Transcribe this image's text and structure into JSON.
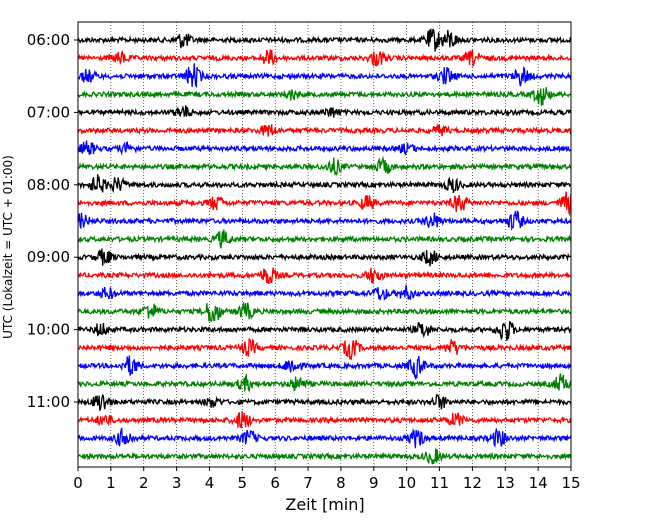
{
  "chart_data": {
    "type": "line",
    "title": "",
    "xlabel": "Zeit  [min]",
    "ylabel": "UTC (Lokalzeit = UTC + 01:00)",
    "xlim": [
      0,
      15
    ],
    "x_ticks": [
      "0",
      "1",
      "2",
      "3",
      "4",
      "5",
      "6",
      "7",
      "8",
      "9",
      "10",
      "11",
      "12",
      "13",
      "14",
      "15"
    ],
    "y_ticks": [
      "06:00",
      "07:00",
      "08:00",
      "09:00",
      "10:00",
      "11:00"
    ],
    "y_tick_trace_index": [
      0,
      4,
      8,
      12,
      16,
      20
    ],
    "grid": "vertical dotted lines at each minute",
    "legend": "none",
    "trace_interval_minutes": 15,
    "trace_colors": [
      "#000000",
      "#ff0000",
      "#0000ff",
      "#008000"
    ],
    "series": [
      {
        "start": "06:00",
        "color": "#000000",
        "events": [
          {
            "t": 3.2,
            "a": 1.0
          },
          {
            "t": 10.8,
            "a": 1.5
          },
          {
            "t": 11.3,
            "a": 1.2
          }
        ]
      },
      {
        "start": "06:15",
        "color": "#ff0000",
        "events": [
          {
            "t": 1.3,
            "a": 0.7
          },
          {
            "t": 5.8,
            "a": 1.0
          },
          {
            "t": 9.1,
            "a": 1.0
          },
          {
            "t": 12.0,
            "a": 0.9
          }
        ]
      },
      {
        "start": "06:30",
        "color": "#0000ff",
        "events": [
          {
            "t": 0.3,
            "a": 0.8
          },
          {
            "t": 3.5,
            "a": 1.6
          },
          {
            "t": 11.2,
            "a": 1.1
          },
          {
            "t": 13.5,
            "a": 1.2
          }
        ]
      },
      {
        "start": "06:45",
        "color": "#008000",
        "events": [
          {
            "t": 6.5,
            "a": 0.6
          },
          {
            "t": 14.1,
            "a": 1.4
          }
        ]
      },
      {
        "start": "07:00",
        "color": "#000000",
        "events": [
          {
            "t": 3.2,
            "a": 0.8
          },
          {
            "t": 7.7,
            "a": 0.6
          }
        ]
      },
      {
        "start": "07:15",
        "color": "#ff0000",
        "events": [
          {
            "t": 5.8,
            "a": 0.8
          },
          {
            "t": 11.0,
            "a": 0.6
          }
        ]
      },
      {
        "start": "07:30",
        "color": "#0000ff",
        "events": [
          {
            "t": 0.3,
            "a": 0.9
          },
          {
            "t": 1.5,
            "a": 0.6
          },
          {
            "t": 10.0,
            "a": 0.6
          }
        ]
      },
      {
        "start": "07:45",
        "color": "#008000",
        "events": [
          {
            "t": 7.8,
            "a": 1.0
          },
          {
            "t": 9.3,
            "a": 1.0
          }
        ]
      },
      {
        "start": "08:00",
        "color": "#000000",
        "events": [
          {
            "t": 0.6,
            "a": 1.2
          },
          {
            "t": 1.2,
            "a": 0.9
          },
          {
            "t": 11.4,
            "a": 0.9
          }
        ]
      },
      {
        "start": "08:15",
        "color": "#ff0000",
        "events": [
          {
            "t": 4.2,
            "a": 0.9
          },
          {
            "t": 8.8,
            "a": 0.9
          },
          {
            "t": 11.6,
            "a": 1.2
          },
          {
            "t": 14.9,
            "a": 1.4
          }
        ]
      },
      {
        "start": "08:30",
        "color": "#0000ff",
        "events": [
          {
            "t": 0.1,
            "a": 0.9
          },
          {
            "t": 10.8,
            "a": 1.0
          },
          {
            "t": 13.3,
            "a": 1.3
          }
        ]
      },
      {
        "start": "08:45",
        "color": "#008000",
        "events": [
          {
            "t": 4.4,
            "a": 1.1
          }
        ]
      },
      {
        "start": "09:00",
        "color": "#000000",
        "events": [
          {
            "t": 0.8,
            "a": 1.0
          },
          {
            "t": 10.7,
            "a": 1.0
          }
        ]
      },
      {
        "start": "09:15",
        "color": "#ff0000",
        "events": [
          {
            "t": 5.8,
            "a": 1.2
          },
          {
            "t": 9.0,
            "a": 1.0
          }
        ]
      },
      {
        "start": "09:30",
        "color": "#0000ff",
        "events": [
          {
            "t": 0.9,
            "a": 0.7
          },
          {
            "t": 9.2,
            "a": 0.9
          },
          {
            "t": 10.0,
            "a": 0.9
          }
        ]
      },
      {
        "start": "09:45",
        "color": "#008000",
        "events": [
          {
            "t": 2.2,
            "a": 1.1
          },
          {
            "t": 4.1,
            "a": 1.8
          },
          {
            "t": 5.1,
            "a": 1.1
          }
        ]
      },
      {
        "start": "10:00",
        "color": "#000000",
        "events": [
          {
            "t": 0.7,
            "a": 0.8
          },
          {
            "t": 10.5,
            "a": 1.0
          },
          {
            "t": 13.0,
            "a": 1.6
          }
        ]
      },
      {
        "start": "10:15",
        "color": "#ff0000",
        "events": [
          {
            "t": 5.2,
            "a": 1.0
          },
          {
            "t": 8.3,
            "a": 1.4
          },
          {
            "t": 11.4,
            "a": 1.0
          }
        ]
      },
      {
        "start": "10:30",
        "color": "#0000ff",
        "events": [
          {
            "t": 1.6,
            "a": 1.3
          },
          {
            "t": 6.5,
            "a": 1.1
          },
          {
            "t": 10.3,
            "a": 1.5
          }
        ]
      },
      {
        "start": "10:45",
        "color": "#008000",
        "events": [
          {
            "t": 5.1,
            "a": 0.9
          },
          {
            "t": 6.7,
            "a": 0.9
          },
          {
            "t": 14.7,
            "a": 1.2
          }
        ]
      },
      {
        "start": "11:00",
        "color": "#000000",
        "events": [
          {
            "t": 0.7,
            "a": 1.3
          },
          {
            "t": 4.1,
            "a": 0.6
          },
          {
            "t": 11.0,
            "a": 0.9
          }
        ]
      },
      {
        "start": "11:15",
        "color": "#ff0000",
        "events": [
          {
            "t": 0.8,
            "a": 0.7
          },
          {
            "t": 5.0,
            "a": 1.2
          },
          {
            "t": 11.5,
            "a": 0.9
          }
        ]
      },
      {
        "start": "11:30",
        "color": "#0000ff",
        "events": [
          {
            "t": 1.4,
            "a": 1.3
          },
          {
            "t": 5.2,
            "a": 1.0
          },
          {
            "t": 10.3,
            "a": 1.2
          },
          {
            "t": 12.8,
            "a": 1.1
          }
        ]
      },
      {
        "start": "11:45",
        "color": "#008000",
        "events": [
          {
            "t": 10.8,
            "a": 1.0
          }
        ]
      }
    ]
  }
}
